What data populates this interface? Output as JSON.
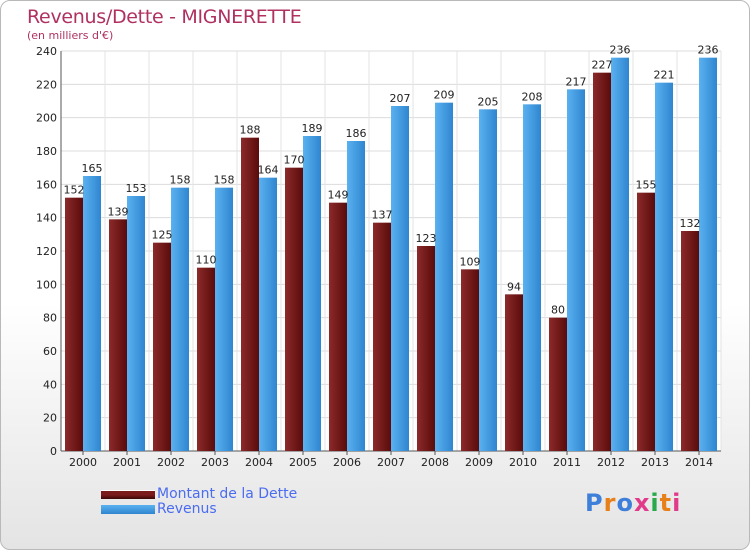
{
  "chart_data": {
    "type": "bar",
    "title": "Revenus/Dette - MIGNERETTE",
    "subtitle": "(en milliers d'€)",
    "categories": [
      "2000",
      "2001",
      "2002",
      "2003",
      "2004",
      "2005",
      "2006",
      "2007",
      "2008",
      "2009",
      "2010",
      "2011",
      "2012",
      "2013",
      "2014"
    ],
    "series": [
      {
        "name": "Montant de la Dette",
        "color": "#7a1a1a",
        "values": [
          152,
          139,
          125,
          110,
          188,
          170,
          149,
          137,
          123,
          109,
          94,
          80,
          227,
          155,
          132
        ]
      },
      {
        "name": "Revenus",
        "color": "#3d9be4",
        "values": [
          165,
          153,
          158,
          158,
          164,
          189,
          186,
          207,
          209,
          205,
          208,
          217,
          236,
          221,
          236
        ]
      }
    ],
    "ylim": [
      0,
      240
    ],
    "yticks": [
      0,
      20,
      40,
      60,
      80,
      100,
      120,
      140,
      160,
      180,
      200,
      220,
      240
    ],
    "grid": true,
    "legend_position": "bottom-left"
  },
  "logo": {
    "text": "Proxiti",
    "letter_colors": [
      "#3d7fd9",
      "#e8801a",
      "#3d7fd9",
      "#e23a8a",
      "#2aa84a",
      "#e8801a",
      "#e23a8a"
    ]
  }
}
